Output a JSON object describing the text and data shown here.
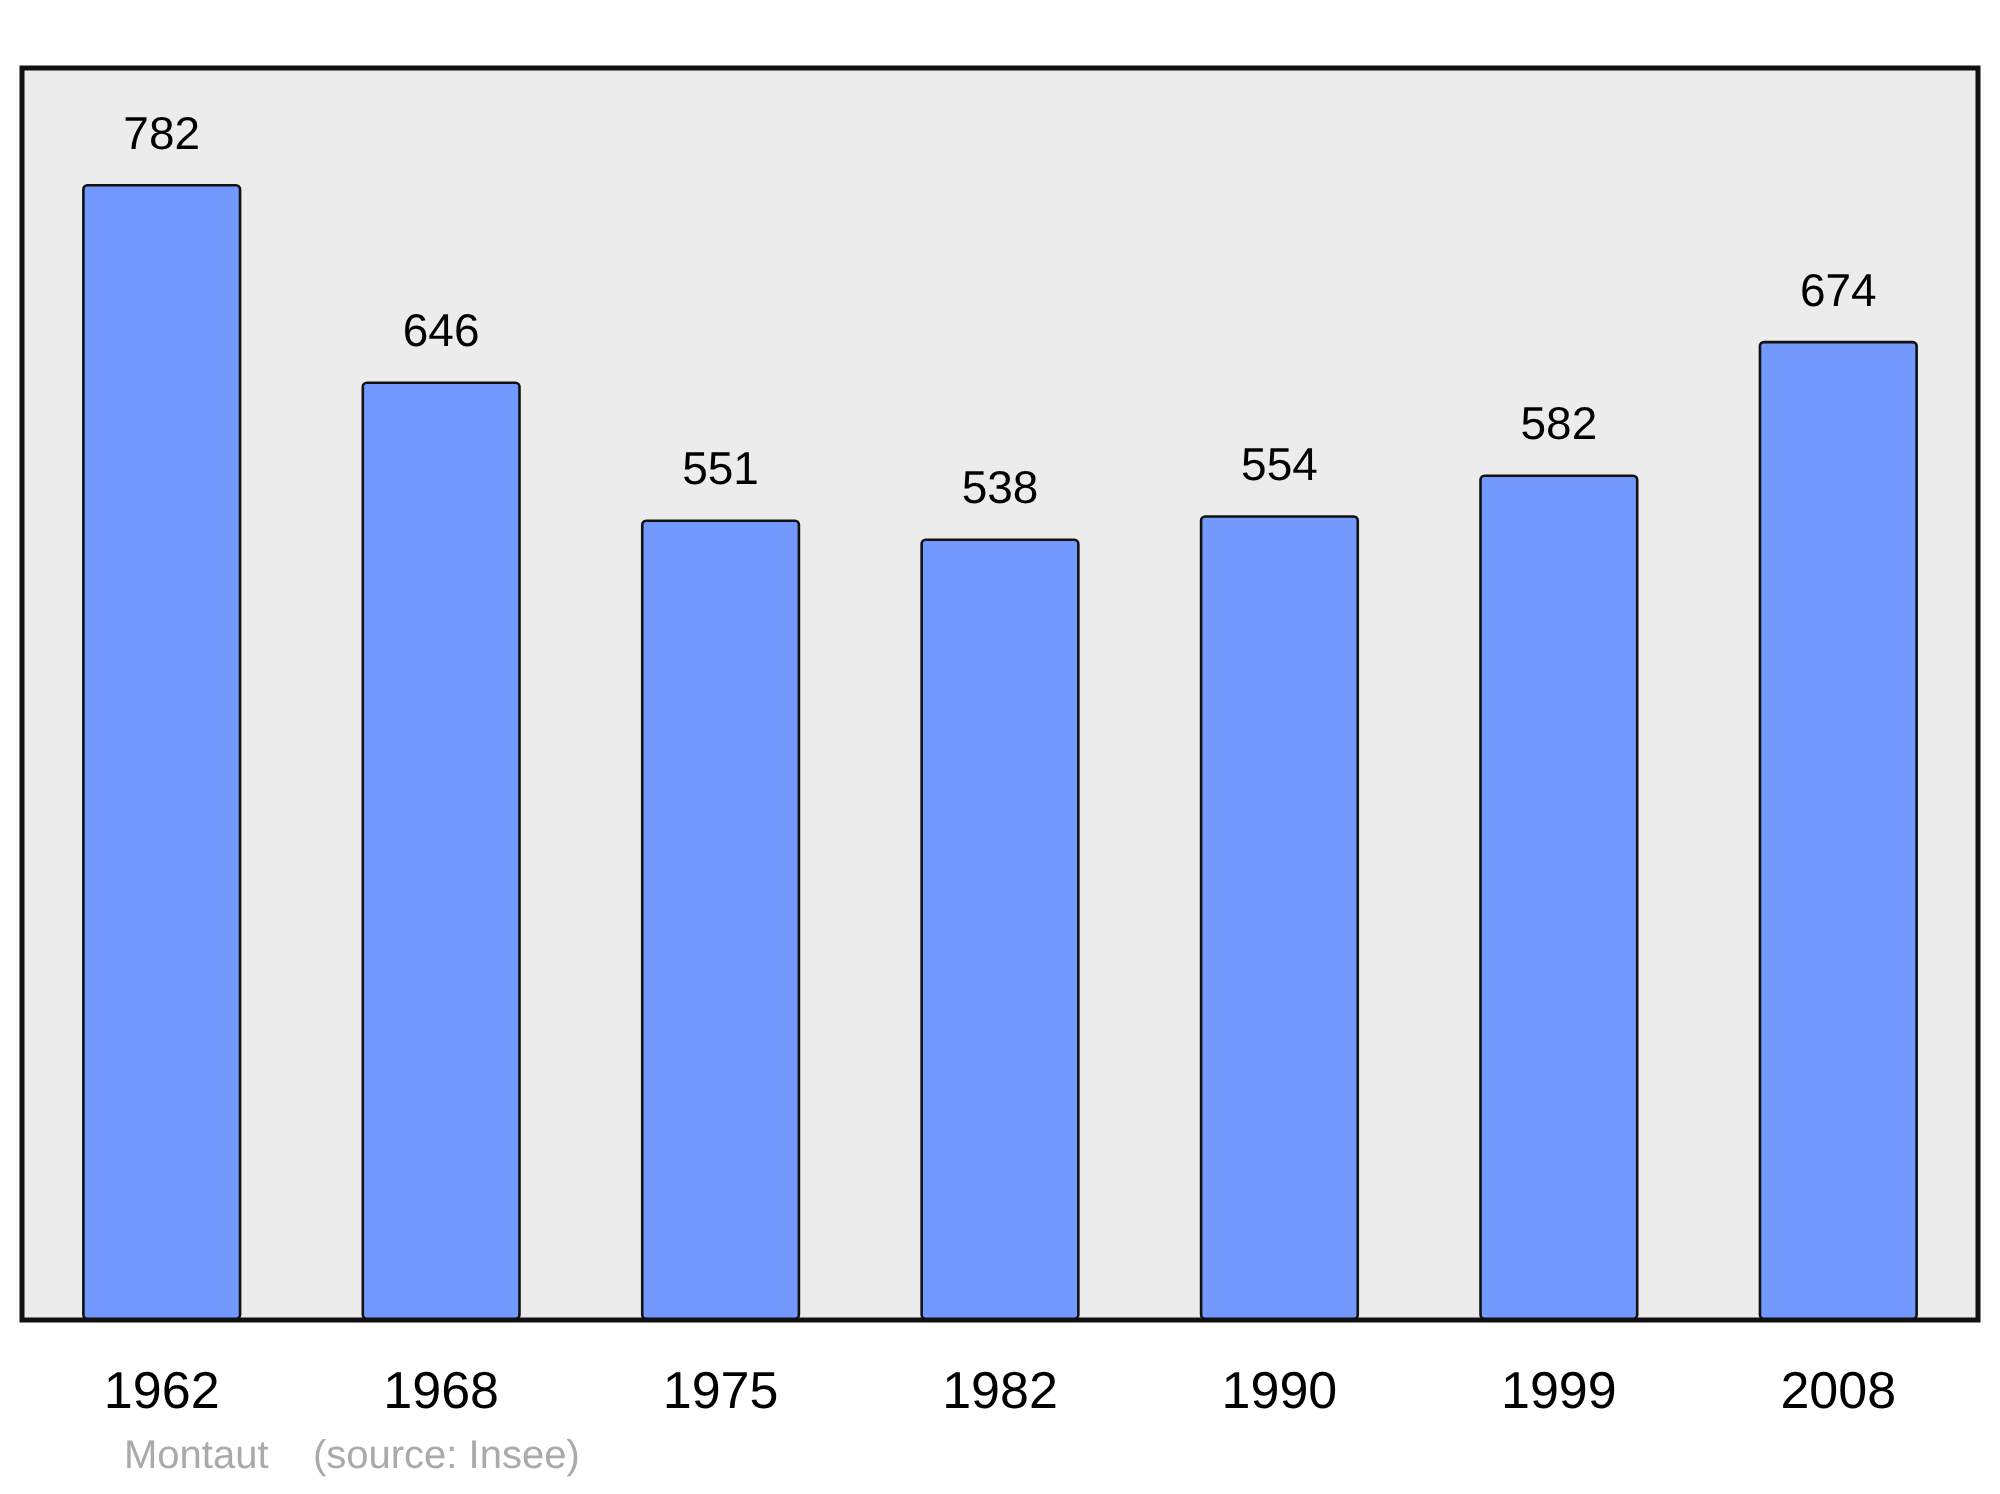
{
  "chart_data": {
    "type": "bar",
    "categories": [
      "1962",
      "1968",
      "1975",
      "1982",
      "1990",
      "1999",
      "2008"
    ],
    "values": [
      782,
      646,
      551,
      538,
      554,
      582,
      674
    ],
    "color": "#7399ff",
    "data_labels": true,
    "annotations": [
      "Montaut    (source: Insee)"
    ]
  }
}
